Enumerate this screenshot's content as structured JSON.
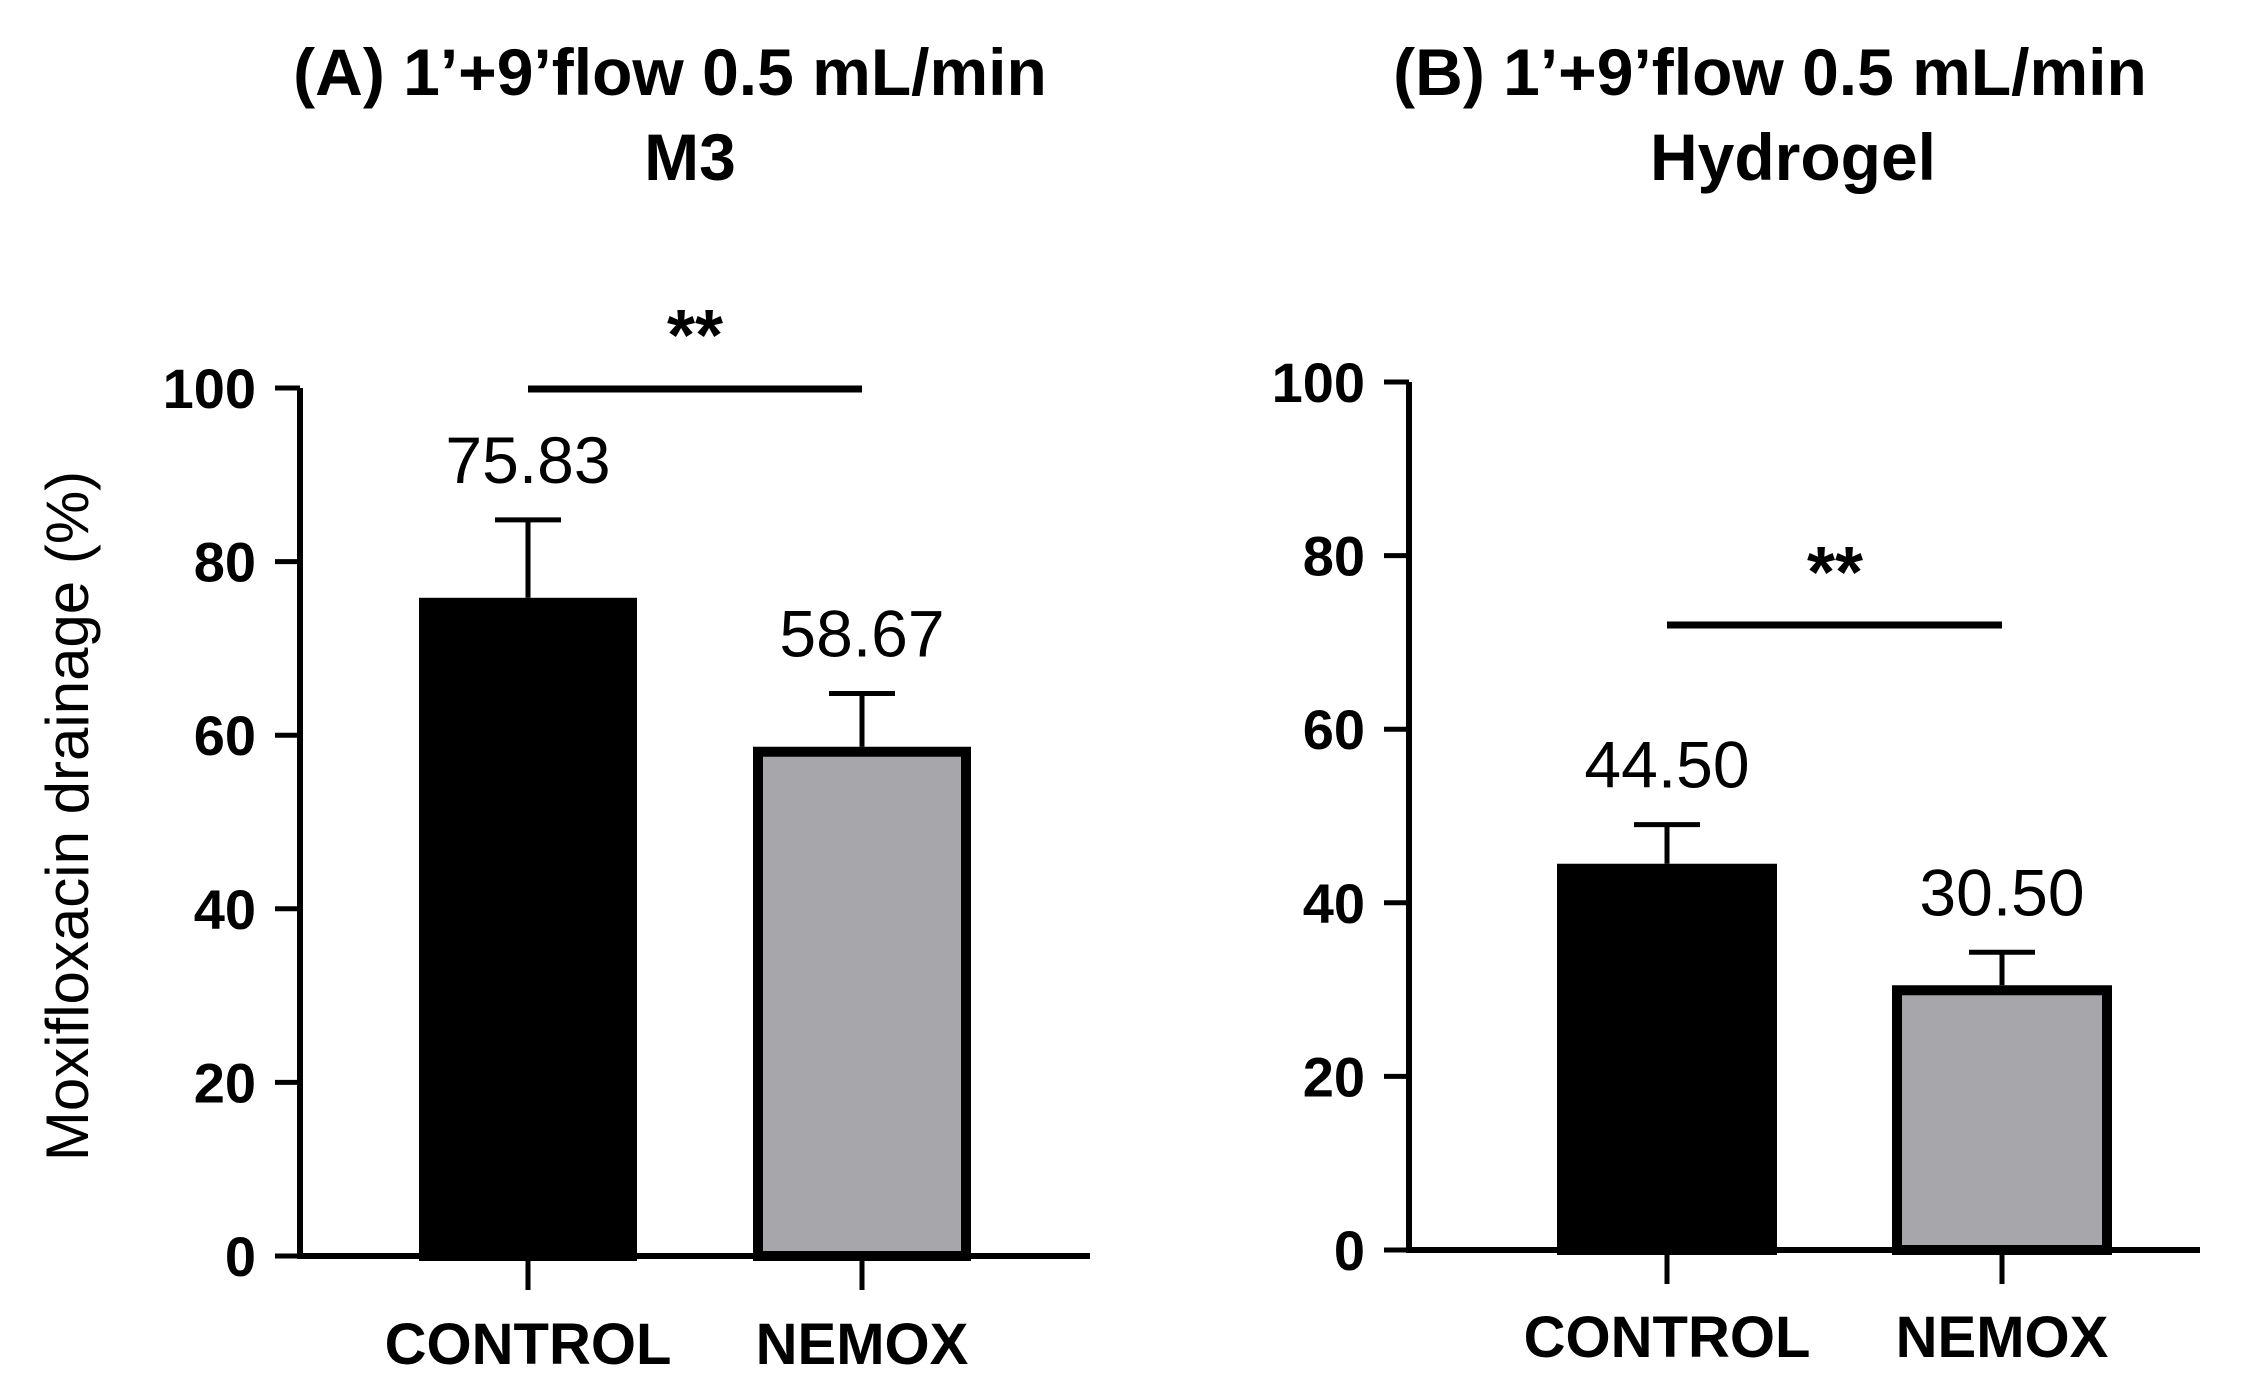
{
  "chart_data": [
    {
      "type": "bar",
      "panel_label": "(A)",
      "title_line1": "(A) 1’+9’flow 0.5 mL/min",
      "title_line2": "M3",
      "xlabel": "",
      "ylabel": "Moxifloxacin drainage (%)",
      "ylim": [
        0,
        100
      ],
      "yticks": [
        "0",
        "20",
        "40",
        "60",
        "80",
        "100"
      ],
      "categories": [
        "CONTROL",
        "NEMOX"
      ],
      "values": [
        75.83,
        58.67
      ],
      "value_labels": [
        "75.83",
        "58.67"
      ],
      "error_upper": [
        84.8,
        64.8
      ],
      "bar_colors": [
        "#000000",
        "#a7a6ab"
      ],
      "significance": {
        "label": "**",
        "between": [
          "CONTROL",
          "NEMOX"
        ]
      }
    },
    {
      "type": "bar",
      "panel_label": "(B)",
      "title_line1": "(B) 1’+9’flow 0.5 mL/min",
      "title_line2": "Hydrogel",
      "xlabel": "",
      "ylabel": "",
      "ylim": [
        0,
        100
      ],
      "yticks": [
        "0",
        "20",
        "40",
        "60",
        "80",
        "100"
      ],
      "categories": [
        "CONTROL",
        "NEMOX"
      ],
      "values": [
        44.5,
        30.5
      ],
      "value_labels": [
        "44.50",
        "30.50"
      ],
      "error_upper": [
        49.0,
        34.3
      ],
      "bar_colors": [
        "#000000",
        "#a7a6ab"
      ],
      "significance": {
        "label": "**",
        "between": [
          "CONTROL",
          "NEMOX"
        ]
      }
    }
  ]
}
